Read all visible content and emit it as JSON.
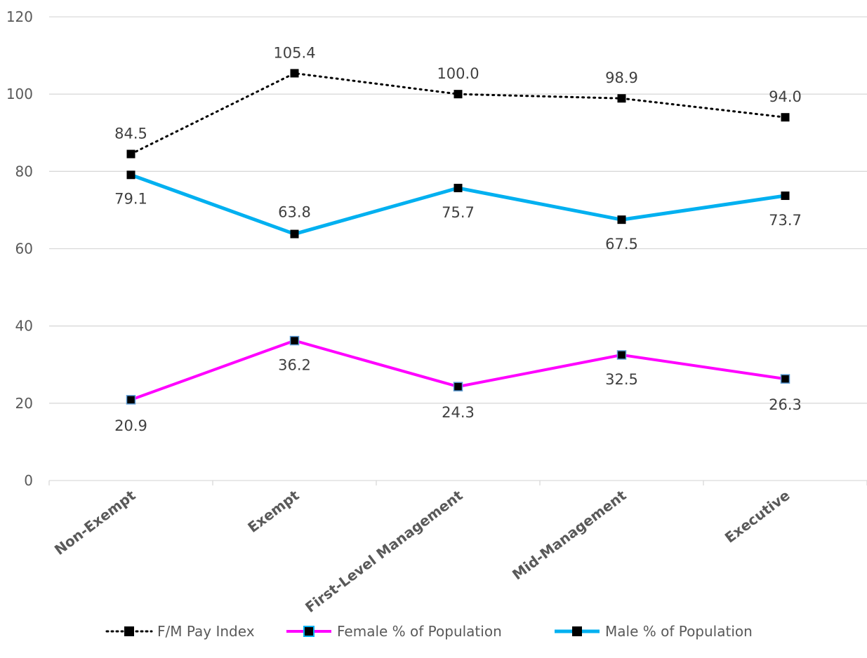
{
  "chart_data": {
    "type": "line",
    "categories": [
      "Non-Exempt",
      "Exempt",
      "First-Level Management",
      "Mid-Management",
      "Executive"
    ],
    "ylim": [
      0,
      120
    ],
    "yticks": [
      "0",
      "20",
      "40",
      "60",
      "80",
      "100",
      "120"
    ],
    "grid": true,
    "legend_position": "bottom",
    "series": [
      {
        "name": "F/M Pay Index",
        "values": [
          84.5,
          105.4,
          100.0,
          98.9,
          94.0
        ],
        "labels": [
          "84.5",
          "105.4",
          "100.0",
          "98.9",
          "94.0"
        ],
        "color": "#000000",
        "line_style": "dotted",
        "marker": "square"
      },
      {
        "name": "Female % of Population",
        "values": [
          20.9,
          36.2,
          24.3,
          32.5,
          26.3
        ],
        "labels": [
          "20.9",
          "36.2",
          "24.3",
          "32.5",
          "26.3"
        ],
        "color": "#FF00FF",
        "line_style": "solid",
        "marker": "square"
      },
      {
        "name": "Male % of Population",
        "values": [
          79.1,
          63.8,
          75.7,
          67.5,
          73.7
        ],
        "labels": [
          "79.1",
          "63.8",
          "75.7",
          "67.5",
          "73.7"
        ],
        "color": "#00B0F0",
        "line_style": "solid",
        "marker": "square"
      }
    ]
  }
}
